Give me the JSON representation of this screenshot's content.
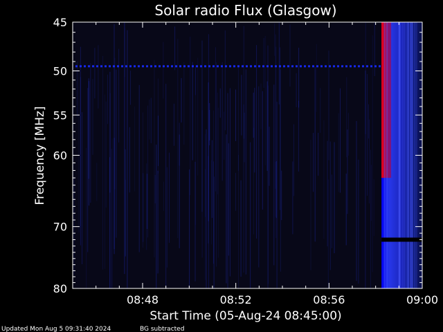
{
  "chart_data": {
    "type": "heatmap",
    "title": "Solar radio Flux (Glasgow)",
    "xlabel": "Start Time (05-Aug-24 08:45:00)",
    "ylabel": "Frequency [MHz]",
    "x_unit": "UT time",
    "x_range": [
      "08:45:00",
      "09:00:00"
    ],
    "y_range": [
      45,
      80
    ],
    "y_scale": "log",
    "y_inverted": true,
    "x_ticks": [
      "08:48",
      "08:52",
      "08:56",
      "09:00"
    ],
    "y_ticks": [
      45,
      50,
      55,
      60,
      70,
      80
    ],
    "grid": false,
    "colormap": {
      "background": "#000000",
      "low": "#0a0a40",
      "mid": "#2a3cff",
      "high": "#ff1a1a"
    },
    "features": {
      "interference_line_mhz": 49.5,
      "burst_start": "08:58:15",
      "burst_end": "09:00:00",
      "burst_peak_start": "08:58:15",
      "burst_peak_end": "08:58:40",
      "burst_peak_freq_range": [
        45,
        63
      ],
      "data_gap_mhz": 72
    },
    "footer": {
      "updated": "Updated Mon Aug  5 09:31:40 2024",
      "note": "BG subtracted"
    }
  }
}
